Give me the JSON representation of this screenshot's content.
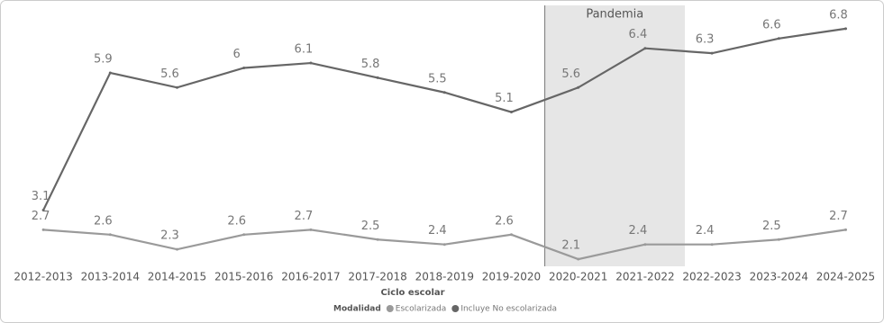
{
  "chart_data": {
    "type": "line",
    "categories": [
      "2012-2013",
      "2013-2014",
      "2014-2015",
      "2015-2016",
      "2016-2017",
      "2017-2018",
      "2018-2019",
      "2019-2020",
      "2020-2021",
      "2021-2022",
      "2022-2023",
      "2023-2024",
      "2024-2025"
    ],
    "series": [
      {
        "name": "Escolarizada",
        "color": "#9a9a9a",
        "values": [
          2.7,
          2.6,
          2.3,
          2.6,
          2.7,
          2.5,
          2.4,
          2.6,
          2.1,
          2.4,
          2.4,
          2.5,
          2.7
        ]
      },
      {
        "name": "Incluye No escolarizada",
        "color": "#666666",
        "values": [
          3.1,
          5.9,
          5.6,
          6.0,
          6.1,
          5.8,
          5.5,
          5.1,
          5.6,
          6.4,
          6.3,
          6.6,
          6.8
        ]
      }
    ],
    "ylim": [
      2,
      7
    ],
    "x_label": "Ciclo escolar",
    "legend_title": "Modalidad",
    "annotation": "Pandemia"
  }
}
